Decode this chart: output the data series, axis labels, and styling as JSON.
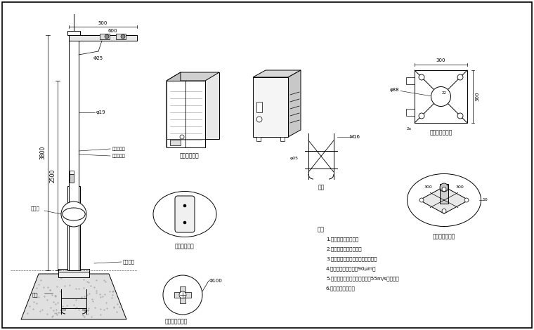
{
  "bg_color": "#ffffff",
  "line_color": "#000000",
  "gray1": "#aaaaaa",
  "gray2": "#cccccc",
  "gray3": "#888888",
  "concrete_color": "#d0d0d0",
  "labels": {
    "waterproof_box": "防水箱放大图",
    "repair_hole_enlarge": "维修孔放大图",
    "machine_flange": "桩机法兰放大图",
    "ground_cage": "地笼",
    "base_flange_front": "底座法兰正视图",
    "base_flange_large": "底座法兰放大图",
    "description_title": "说明",
    "desc1": "1.主干为国标镀锌管。",
    "desc2": "2.上下法兰加强筋连接。",
    "desc3": "3.喷涂后不再进行任何加工和焊接。",
    "desc4": "4.钢管镀锌锌层厚度为90μm。",
    "desc5": "5.立杆、横臂和其它部件应能抗55m/s的风速。",
    "desc6": "6.拔管、避雷针可折",
    "repair_hole_label": "维修孔",
    "base_flange_label": "底座法兰",
    "ground_cage_label": "地笼",
    "upper_paint": "上部高光色",
    "lower_paint": "下部哑粉色",
    "dim_500": "500",
    "dim_600": "600",
    "dim_phi25": "Φ25",
    "dim_phi19": "φ19",
    "dim_3800": "3800",
    "dim_2500": "2500",
    "dim_300_top": "300",
    "dim_300_side": "300",
    "dim_phi88": "φ88",
    "dim_phi100": "Φ100",
    "dim_M16": "M16",
    "dim_phi05": "φ05",
    "dim_300a": "300",
    "dim_300b": "300",
    "dim_22": "22",
    "dim_2a": "2a",
    "dim_10": "10"
  }
}
